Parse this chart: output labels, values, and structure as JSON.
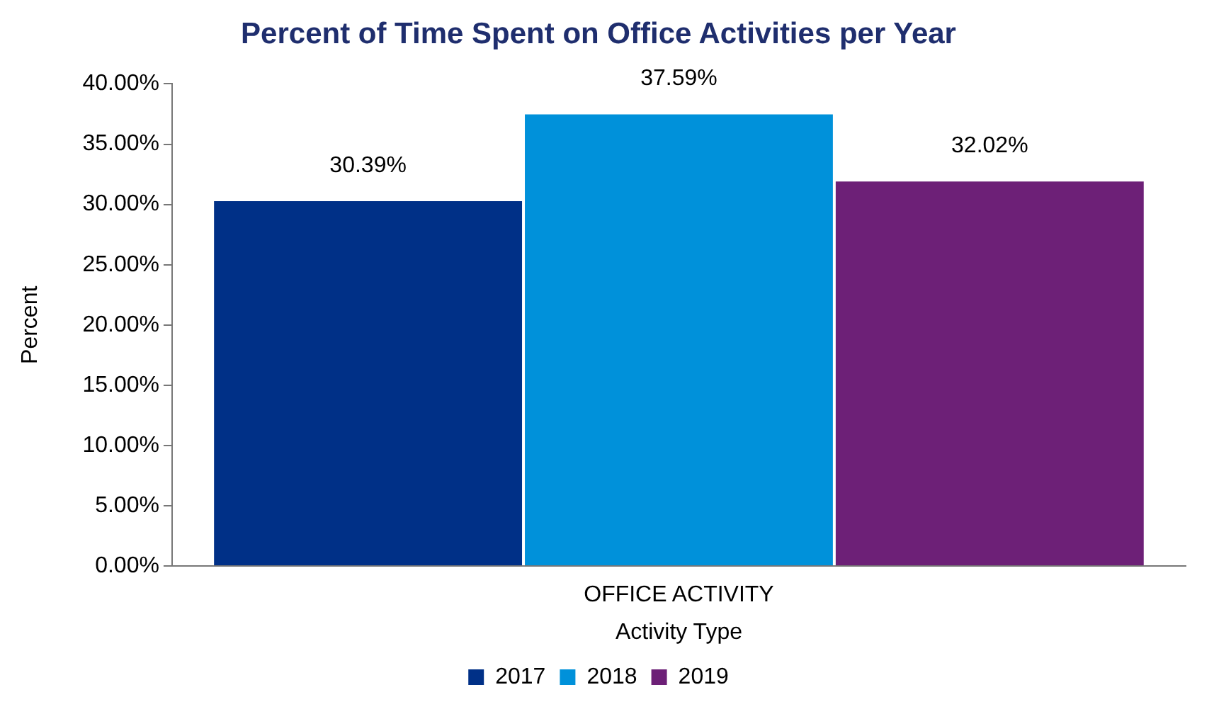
{
  "chart_data": {
    "type": "bar",
    "title": "Percent of Time Spent on Office Activities per Year",
    "xlabel": "Activity Type",
    "ylabel": "Percent",
    "categories": [
      "OFFICE ACTIVITY"
    ],
    "series": [
      {
        "name": "2017",
        "color": "#003087",
        "values": [
          30.39
        ],
        "value_labels": [
          "30.39%"
        ]
      },
      {
        "name": "2018",
        "color": "#0091da",
        "values": [
          37.59
        ],
        "value_labels": [
          "37.59%"
        ]
      },
      {
        "name": "2019",
        "color": "#6d2077",
        "values": [
          32.02
        ],
        "value_labels": [
          "32.02%"
        ]
      }
    ],
    "ylim": [
      0,
      40
    ],
    "yticks": [
      {
        "value": 0,
        "label": "0.00%"
      },
      {
        "value": 5,
        "label": "5.00%"
      },
      {
        "value": 10,
        "label": "10.00%"
      },
      {
        "value": 15,
        "label": "15.00%"
      },
      {
        "value": 20,
        "label": "20.00%"
      },
      {
        "value": 25,
        "label": "25.00%"
      },
      {
        "value": 30,
        "label": "30.00%"
      },
      {
        "value": 35,
        "label": "35.00%"
      },
      {
        "value": 40,
        "label": "40.00%"
      }
    ],
    "grid": false,
    "legend": "bottom"
  }
}
